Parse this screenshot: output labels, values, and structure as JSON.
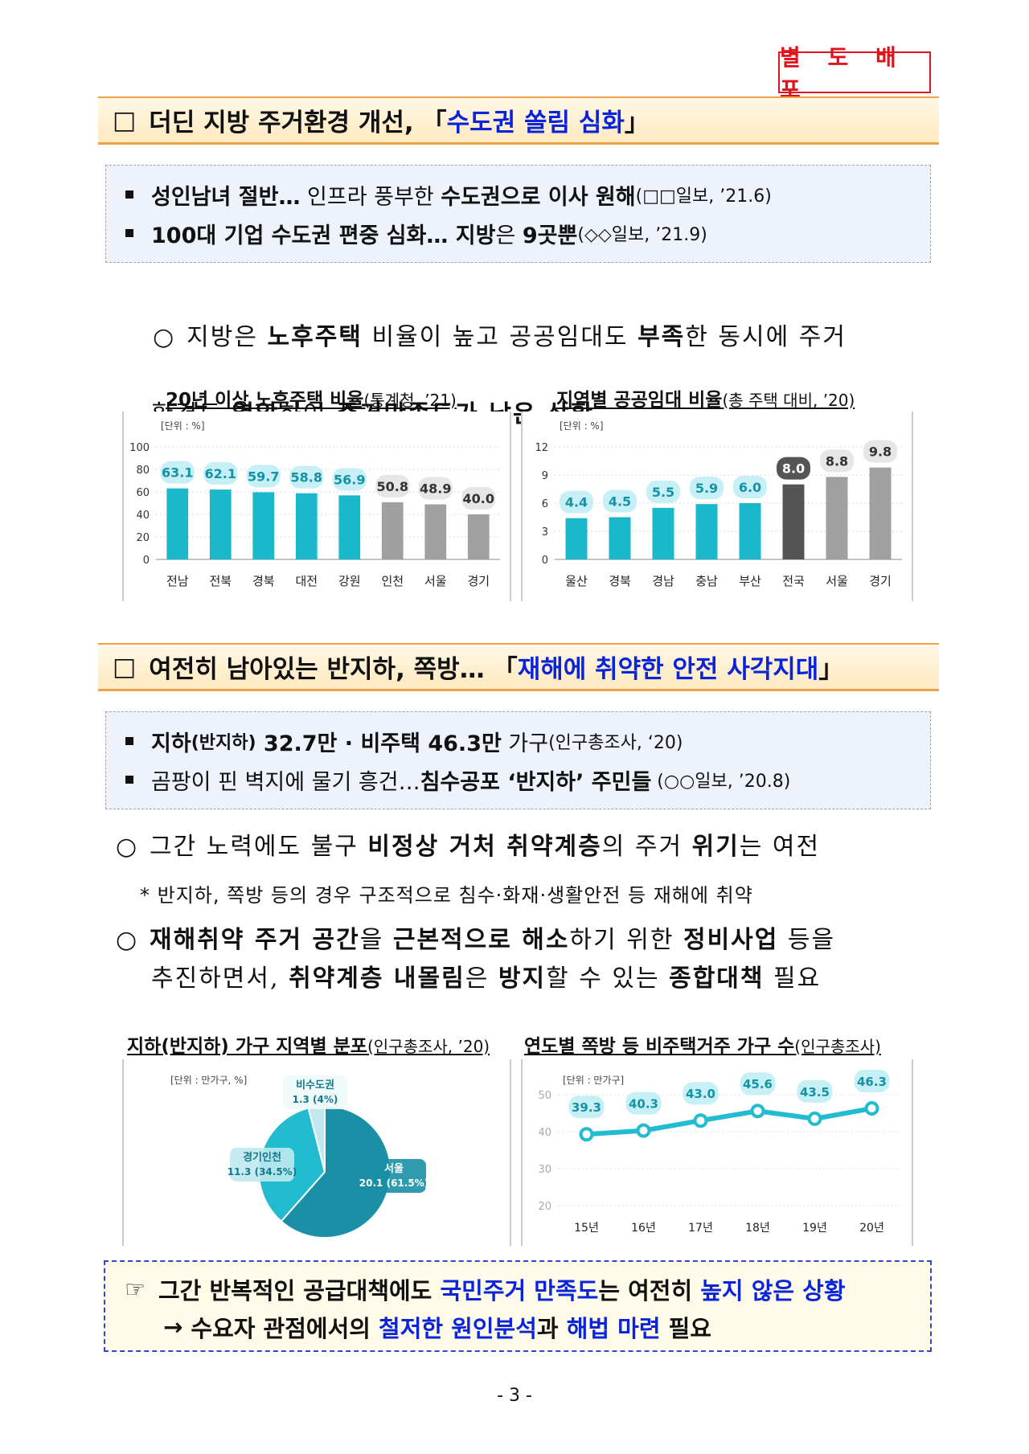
{
  "stamp": "별 도 배 포",
  "section1": {
    "checkbox": "□",
    "title_prefix": "더딘 지방 주거환경 개선,",
    "title_open": "「",
    "title_highlight": "수도권 쏠림 심화",
    "title_close": "」",
    "news": [
      {
        "bold1": "성인남녀 절반…",
        "normal": " 인프라 풍부한 ",
        "bold2": "수도권으로 이사 원해",
        "source": "(□□일보, ’21.6)"
      },
      {
        "bold1": "100대 기업 수도권 편중 심화… 지방",
        "normal": "은 ",
        "bold2": "9곳뿐",
        "source": "(◇◇일보, ’21.9)"
      }
    ],
    "para": {
      "bullet": "○",
      "t1": "지방은 ",
      "b1": "노후주택",
      "t2": " 비율이 높고 공공임대도 ",
      "b2": "부족",
      "t3": "한 동시에 주거",
      "t4": "환경도 ",
      "b3": "열악",
      "t5": "하여 ",
      "b4": "주거만족도가 낮은 상황"
    }
  },
  "chart1_title": {
    "main": "20년 이상 노후주택 비율",
    "src": "(통계청, ’21)"
  },
  "chart2_title": {
    "main": "지역별 공공임대 비율",
    "src": "(총 주택 대비, ’20)"
  },
  "section2": {
    "checkbox": "□",
    "title_prefix": "여전히 남아있는 반지하, 쪽방…",
    "title_open": "「",
    "title_highlight": "재해에 취약한 안전 사각지대",
    "title_close": "」",
    "news": [
      {
        "bold1": "지하",
        "small": "(반지하)",
        "bold2": " 32.7만 · 비주택 46.3만",
        "normal": " 가구",
        "source": "(인구총조사, ‘20)"
      },
      {
        "normal": "곰팡이 핀 벽지에 물기 흥건…",
        "bold2": "침수공포 ‘반지하’ 주민들",
        "source": " (○○일보, ’20.8)"
      }
    ],
    "para1": {
      "bullet": "○",
      "t1": "그간 노력에도 불구 ",
      "b1": "비정상 거처 취약계층",
      "t2": "의 주거 ",
      "b2": "위기",
      "t3": "는 여전"
    },
    "note": "* 반지하, 쪽방 등의 경우 구조적으로 침수·화재·생활안전 등 재해에 취약",
    "para2": {
      "bullet": "○",
      "b1": "재해취약 주거 공간",
      "t1": "을 ",
      "b2": "근본적으로 해소",
      "t2": "하기 위한 ",
      "b3": "정비사업",
      "t3": " 등을",
      "t4": "추진하면서, ",
      "b4": "취약계층 내몰림",
      "t5": "은 ",
      "b5": "방지",
      "t6": "할 수 있는 ",
      "b6": "종합대책",
      "t7": " 필요"
    }
  },
  "chart3_title": {
    "main": "지하(반지하) 가구 지역별 분포",
    "src": "(인구총조사, ’20)"
  },
  "chart4_title": {
    "main": "연도별 쪽방 등 비주택거주 가구 수",
    "src": "(인구총조사)"
  },
  "summary": {
    "icon": "☞",
    "l1a": "그간 반복적인 공급대책에도 ",
    "l1b": "국민주거 만족도",
    "l1c": "는 여전히 ",
    "l1d": "높지 않은 상황",
    "arrow": "→",
    "l2a": " 수요자 관점에서의 ",
    "l2b": "철저한 원인분석",
    "l2c": "과 ",
    "l2d": "해법 마련",
    "l2e": " 필요"
  },
  "page_number": "- 3 -",
  "chart_data": [
    {
      "type": "bar",
      "unit_label": "[단위 : %]",
      "categories": [
        "전남",
        "전북",
        "경북",
        "대전",
        "강원",
        "인천",
        "서울",
        "경기"
      ],
      "values": [
        63.1,
        62.1,
        59.7,
        58.8,
        56.9,
        50.8,
        48.9,
        40.0
      ],
      "value_labels": [
        "63.1",
        "62.1",
        "59.7",
        "58.8",
        "56.9",
        "50.8",
        "48.9",
        "40.0"
      ],
      "yticks": [
        0,
        20,
        40,
        60,
        80,
        100
      ],
      "ylim": [
        0,
        100
      ],
      "colors": [
        "#1bb8cc",
        "#1bb8cc",
        "#1bb8cc",
        "#1bb8cc",
        "#1bb8cc",
        "#a0a0a0",
        "#a0a0a0",
        "#a0a0a0"
      ],
      "label_bg": [
        "#c6f0f6",
        "#c6f0f6",
        "#c6f0f6",
        "#c6f0f6",
        "#c6f0f6",
        "#e6e6e6",
        "#e6e6e6",
        "#e6e6e6"
      ]
    },
    {
      "type": "bar",
      "unit_label": "[단위 : %]",
      "categories": [
        "울산",
        "경북",
        "경남",
        "충남",
        "부산",
        "전국",
        "서울",
        "경기"
      ],
      "values": [
        4.4,
        4.5,
        5.5,
        5.9,
        6.0,
        8.0,
        8.8,
        9.8
      ],
      "value_labels": [
        "4.4",
        "4.5",
        "5.5",
        "5.9",
        "6.0",
        "8.0",
        "8.8",
        "9.8"
      ],
      "yticks": [
        0,
        3,
        6,
        9,
        12
      ],
      "ylim": [
        0,
        12
      ],
      "colors": [
        "#1bb8cc",
        "#1bb8cc",
        "#1bb8cc",
        "#1bb8cc",
        "#1bb8cc",
        "#555555",
        "#a0a0a0",
        "#a0a0a0"
      ],
      "label_bg": [
        "#c6f0f6",
        "#c6f0f6",
        "#c6f0f6",
        "#c6f0f6",
        "#c6f0f6",
        "#555555",
        "#e6e6e6",
        "#e6e6e6"
      ],
      "label_fg": [
        "#1592a6",
        "#1592a6",
        "#1592a6",
        "#1592a6",
        "#1592a6",
        "#ffffff",
        "#333333",
        "#333333"
      ]
    },
    {
      "type": "pie",
      "unit_label": "[단위 : 만가구, %]",
      "slices": [
        {
          "name": "서울",
          "value": 20.1,
          "pct": 61.5,
          "label": "20.1 (61.5%)",
          "color": "#1a8fa6"
        },
        {
          "name": "경기인천",
          "value": 11.3,
          "pct": 34.5,
          "label": "11.3 (34.5%)",
          "color": "#22bcd0"
        },
        {
          "name": "비수도권",
          "value": 1.3,
          "pct": 4,
          "label": "1.3 (4%)",
          "color": "#bfe9ef"
        }
      ]
    },
    {
      "type": "line",
      "unit_label": "[단위 : 만가구]",
      "x": [
        "15년",
        "16년",
        "17년",
        "18년",
        "19년",
        "20년"
      ],
      "values": [
        39.3,
        40.3,
        43.0,
        45.6,
        43.5,
        46.3
      ],
      "value_labels": [
        "39.3",
        "40.3",
        "43.0",
        "45.6",
        "43.5",
        "46.3"
      ],
      "yticks": [
        20,
        30,
        40,
        50
      ],
      "ylim": [
        20,
        50
      ],
      "color": "#22bcd0"
    }
  ]
}
